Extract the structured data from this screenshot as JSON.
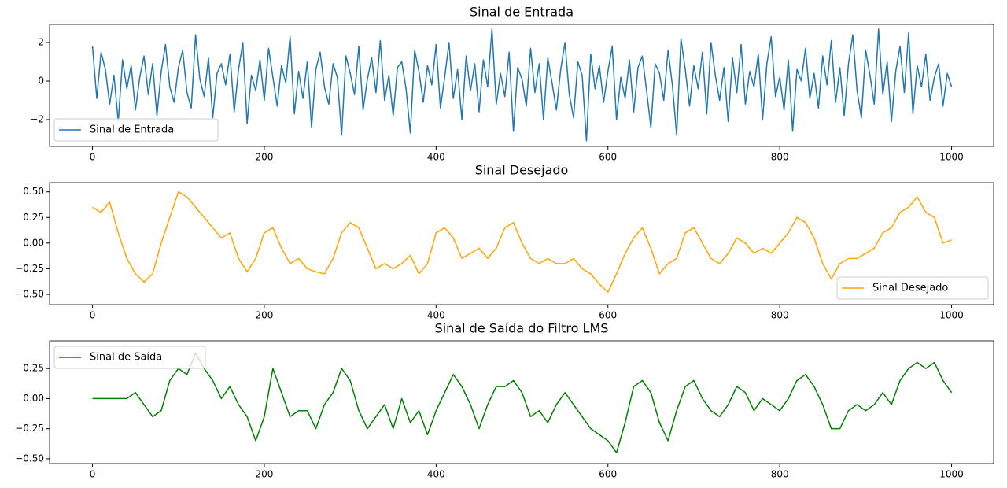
{
  "chart_data": [
    {
      "type": "line",
      "title": "Sinal de Entrada",
      "legend": "lower left",
      "grid": false,
      "xlim": [
        -49.95,
        1048.95
      ],
      "xticks": [
        0,
        200,
        400,
        600,
        800,
        1000
      ],
      "ylim": [
        -3.39,
        2.94
      ],
      "yticks": [
        {
          "value": -2,
          "label": "−2"
        },
        0,
        2
      ],
      "x": [
        0,
        5,
        10,
        15,
        20,
        25,
        30,
        35,
        40,
        45,
        50,
        55,
        60,
        65,
        70,
        75,
        80,
        85,
        90,
        95,
        100,
        105,
        110,
        115,
        120,
        125,
        130,
        135,
        140,
        145,
        150,
        155,
        160,
        165,
        170,
        175,
        180,
        185,
        190,
        195,
        200,
        205,
        210,
        215,
        220,
        225,
        230,
        235,
        240,
        245,
        250,
        255,
        260,
        265,
        270,
        275,
        280,
        285,
        290,
        295,
        300,
        305,
        310,
        315,
        320,
        325,
        330,
        335,
        340,
        345,
        350,
        355,
        360,
        365,
        370,
        375,
        380,
        385,
        390,
        395,
        400,
        405,
        410,
        415,
        420,
        425,
        430,
        435,
        440,
        445,
        450,
        455,
        460,
        465,
        470,
        475,
        480,
        485,
        490,
        495,
        500,
        505,
        510,
        515,
        520,
        525,
        530,
        535,
        540,
        545,
        550,
        555,
        560,
        565,
        570,
        575,
        580,
        585,
        590,
        595,
        600,
        605,
        610,
        615,
        620,
        625,
        630,
        635,
        640,
        645,
        650,
        655,
        660,
        665,
        670,
        675,
        680,
        685,
        690,
        695,
        700,
        705,
        710,
        715,
        720,
        725,
        730,
        735,
        740,
        745,
        750,
        755,
        760,
        765,
        770,
        775,
        780,
        785,
        790,
        795,
        800,
        805,
        810,
        815,
        820,
        825,
        830,
        835,
        840,
        845,
        850,
        855,
        860,
        865,
        870,
        875,
        880,
        885,
        890,
        895,
        900,
        905,
        910,
        915,
        920,
        925,
        930,
        935,
        940,
        945,
        950,
        955,
        960,
        965,
        970,
        975,
        980,
        985,
        990,
        995,
        1000
      ],
      "series": [
        {
          "name": "Sinal de Entrada",
          "color": "#1f77b4",
          "values": [
            1.8,
            -0.9,
            1.5,
            0.6,
            -1.2,
            0.3,
            -2.1,
            1.1,
            -0.4,
            0.8,
            -1.5,
            0.2,
            1.3,
            -0.7,
            0.9,
            -1.8,
            0.5,
            1.9,
            -0.3,
            -1.1,
            0.7,
            1.6,
            -0.6,
            -1.4,
            2.4,
            0.1,
            -0.8,
            1.2,
            -1.9,
            0.4,
            0.9,
            -0.2,
            1.4,
            -1.6,
            0.6,
            2.0,
            -2.2,
            0.3,
            -0.5,
            1.1,
            -1.0,
            1.7,
            0.2,
            -1.3,
            0.8,
            -0.1,
            2.3,
            -1.7,
            0.5,
            -0.9,
            1.0,
            -2.4,
            0.6,
            1.5,
            -0.3,
            -1.2,
            0.9,
            0.2,
            -2.8,
            1.3,
            0.4,
            -0.7,
            1.8,
            -1.5,
            0.1,
            1.2,
            -0.6,
            2.1,
            -1.0,
            0.3,
            -1.8,
            0.7,
            1.0,
            -0.4,
            -2.7,
            1.6,
            0.5,
            -1.1,
            0.8,
            -0.2,
            1.9,
            -1.4,
            0.2,
            2.0,
            -0.9,
            0.6,
            -2.0,
            1.3,
            -0.5,
            0.9,
            -1.6,
            1.1,
            -0.3,
            2.7,
            -1.2,
            0.4,
            -0.8,
            1.5,
            -2.6,
            0.7,
            0.1,
            -1.3,
            1.7,
            -0.6,
            0.9,
            -2.0,
            1.2,
            -0.1,
            -1.5,
            0.6,
            2.0,
            -0.7,
            -1.9,
            1.0,
            0.3,
            -3.1,
            1.4,
            -0.4,
            0.8,
            -1.1,
            0.5,
            1.8,
            -2.0,
            0.2,
            -0.9,
            1.1,
            -1.6,
            0.7,
            1.3,
            -0.5,
            -2.4,
            0.9,
            0.4,
            -1.0,
            1.6,
            -0.2,
            -2.8,
            2.2,
            0.6,
            -1.3,
            0.8,
            -0.4,
            1.5,
            -1.7,
            2.0,
            0.3,
            -1.0,
            0.7,
            -2.1,
            1.2,
            -0.6,
            1.9,
            -1.2,
            0.5,
            -0.3,
            1.4,
            -2.0,
            0.9,
            2.3,
            -0.8,
            0.2,
            -1.5,
            1.1,
            -2.6,
            0.6,
            0.0,
            1.7,
            -0.9,
            0.4,
            -1.4,
            1.3,
            -0.2,
            2.1,
            -1.1,
            0.7,
            -1.8,
            0.9,
            2.4,
            -0.5,
            -1.9,
            1.6,
            0.3,
            -1.2,
            2.7,
            -0.7,
            1.0,
            -2.1,
            0.5,
            1.8,
            -0.6,
            2.5,
            -1.7,
            0.8,
            -0.3,
            1.4,
            -1.0,
            0.2,
            0.9,
            -1.3,
            0.4,
            -0.3
          ]
        }
      ]
    },
    {
      "type": "line",
      "title": "Sinal Desejado",
      "legend": "lower right",
      "grid": false,
      "xlim": [
        -49.95,
        1048.95
      ],
      "xticks": [
        0,
        200,
        400,
        600,
        800,
        1000
      ],
      "ylim": [
        -0.6,
        0.59
      ],
      "yticks": [
        {
          "value": -0.5,
          "label": "−0.50"
        },
        {
          "value": -0.25,
          "label": "−0.25"
        },
        {
          "value": 0,
          "label": "0.00"
        },
        {
          "value": 0.25,
          "label": "0.25"
        },
        {
          "value": 0.5,
          "label": "0.50"
        }
      ],
      "x": [
        0,
        10,
        20,
        30,
        40,
        50,
        60,
        70,
        80,
        90,
        100,
        110,
        120,
        130,
        140,
        150,
        160,
        170,
        180,
        190,
        200,
        210,
        220,
        230,
        240,
        250,
        260,
        270,
        280,
        290,
        300,
        310,
        320,
        330,
        340,
        350,
        360,
        370,
        380,
        390,
        400,
        410,
        420,
        430,
        440,
        450,
        460,
        470,
        480,
        490,
        500,
        510,
        520,
        530,
        540,
        550,
        560,
        570,
        580,
        590,
        600,
        610,
        620,
        630,
        640,
        650,
        660,
        670,
        680,
        690,
        700,
        710,
        720,
        730,
        740,
        750,
        760,
        770,
        780,
        790,
        800,
        810,
        820,
        830,
        840,
        850,
        860,
        870,
        880,
        890,
        900,
        910,
        920,
        930,
        940,
        950,
        960,
        970,
        980,
        990,
        1000
      ],
      "series": [
        {
          "name": "Sinal Desejado",
          "color": "#ffa500",
          "values": [
            0.35,
            0.3,
            0.4,
            0.1,
            -0.15,
            -0.3,
            -0.38,
            -0.3,
            0.0,
            0.25,
            0.5,
            0.45,
            0.35,
            0.25,
            0.15,
            0.05,
            0.1,
            -0.15,
            -0.28,
            -0.15,
            0.1,
            0.15,
            -0.05,
            -0.2,
            -0.15,
            -0.25,
            -0.28,
            -0.3,
            -0.15,
            0.1,
            0.2,
            0.15,
            -0.05,
            -0.25,
            -0.2,
            -0.25,
            -0.2,
            -0.12,
            -0.3,
            -0.2,
            0.1,
            0.15,
            0.05,
            -0.15,
            -0.1,
            -0.05,
            -0.15,
            -0.05,
            0.15,
            0.2,
            0.0,
            -0.15,
            -0.2,
            -0.15,
            -0.2,
            -0.2,
            -0.15,
            -0.25,
            -0.3,
            -0.4,
            -0.48,
            -0.3,
            -0.1,
            0.05,
            0.15,
            -0.05,
            -0.3,
            -0.2,
            -0.15,
            0.1,
            0.15,
            0.0,
            -0.15,
            -0.2,
            -0.1,
            0.05,
            0.0,
            -0.1,
            -0.05,
            -0.1,
            0.0,
            0.1,
            0.25,
            0.2,
            0.05,
            -0.2,
            -0.35,
            -0.2,
            -0.15,
            -0.15,
            -0.1,
            -0.05,
            0.1,
            0.15,
            0.3,
            0.35,
            0.45,
            0.3,
            0.25,
            0.0,
            0.03
          ]
        }
      ]
    },
    {
      "type": "line",
      "title": "Sinal de Saída do Filtro LMS",
      "legend": "upper left",
      "grid": false,
      "xlim": [
        -49.95,
        1048.95
      ],
      "xticks": [
        0,
        200,
        400,
        600,
        800,
        1000
      ],
      "ylim": [
        -0.54,
        0.48
      ],
      "yticks": [
        {
          "value": -0.5,
          "label": "−0.50"
        },
        {
          "value": -0.25,
          "label": "−0.25"
        },
        {
          "value": 0,
          "label": "0.00"
        },
        {
          "value": 0.25,
          "label": "0.25"
        }
      ],
      "x": [
        0,
        10,
        20,
        30,
        40,
        50,
        60,
        70,
        80,
        90,
        100,
        110,
        120,
        130,
        140,
        150,
        160,
        170,
        180,
        190,
        200,
        210,
        220,
        230,
        240,
        250,
        260,
        270,
        280,
        290,
        300,
        310,
        320,
        330,
        340,
        350,
        360,
        370,
        380,
        390,
        400,
        410,
        420,
        430,
        440,
        450,
        460,
        470,
        480,
        490,
        500,
        510,
        520,
        530,
        540,
        550,
        560,
        570,
        580,
        590,
        600,
        610,
        620,
        630,
        640,
        650,
        660,
        670,
        680,
        690,
        700,
        710,
        720,
        730,
        740,
        750,
        760,
        770,
        780,
        790,
        800,
        810,
        820,
        830,
        840,
        850,
        860,
        870,
        880,
        890,
        900,
        910,
        920,
        930,
        940,
        950,
        960,
        970,
        980,
        990,
        1000
      ],
      "series": [
        {
          "name": "Sinal de Saída",
          "color": "#008000",
          "values": [
            0,
            0,
            0,
            0,
            0.0,
            0.05,
            -0.05,
            -0.15,
            -0.1,
            0.15,
            0.25,
            0.2,
            0.38,
            0.25,
            0.15,
            0.0,
            0.1,
            -0.05,
            -0.15,
            -0.35,
            -0.15,
            0.25,
            0.05,
            -0.15,
            -0.1,
            -0.1,
            -0.25,
            -0.05,
            0.05,
            0.25,
            0.15,
            -0.1,
            -0.25,
            -0.15,
            -0.05,
            -0.25,
            0.0,
            -0.2,
            -0.1,
            -0.3,
            -0.1,
            0.05,
            0.2,
            0.1,
            -0.05,
            -0.25,
            -0.05,
            0.1,
            0.1,
            0.15,
            0.05,
            -0.15,
            -0.1,
            -0.2,
            -0.05,
            0.05,
            -0.05,
            -0.15,
            -0.25,
            -0.3,
            -0.35,
            -0.45,
            -0.2,
            0.1,
            0.15,
            0.05,
            -0.2,
            -0.35,
            -0.1,
            0.1,
            0.15,
            0.0,
            -0.1,
            -0.15,
            -0.05,
            0.1,
            0.05,
            -0.1,
            0.0,
            -0.05,
            -0.1,
            0.0,
            0.15,
            0.2,
            0.1,
            -0.05,
            -0.25,
            -0.25,
            -0.1,
            -0.05,
            -0.1,
            -0.05,
            0.05,
            -0.05,
            0.15,
            0.25,
            0.3,
            0.25,
            0.3,
            0.15,
            0.05
          ]
        }
      ]
    }
  ]
}
